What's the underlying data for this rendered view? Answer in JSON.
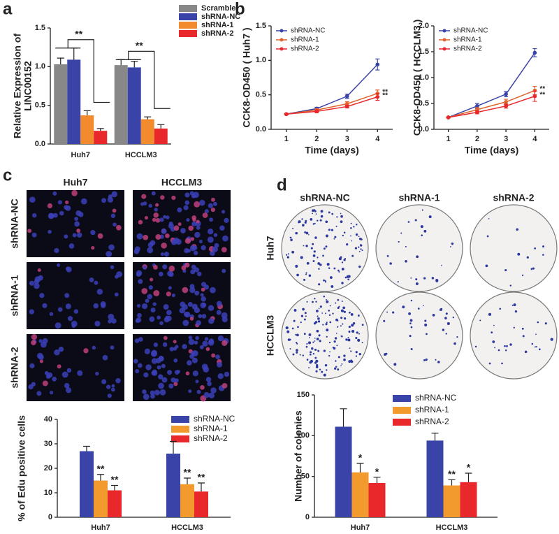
{
  "panel_labels": [
    "a",
    "b",
    "c",
    "d"
  ],
  "image_grids": [
    {
      "columns": [
        "Huh7",
        "HCCLM3"
      ],
      "rows": [
        "shRNA-NC",
        "shRNA-1",
        "shRNA-2"
      ]
    },
    {
      "columns": [
        "shRNA-NC",
        "shRNA-1",
        "shRNA-2"
      ],
      "rows": [
        "Huh7",
        "HCCLM3"
      ]
    }
  ],
  "chart_data": [
    {
      "type": "bar",
      "ylabel": [
        "Relative Expression of",
        "LINC00152"
      ],
      "categories": [
        "Huh7",
        "HCCLM3"
      ],
      "series": [
        {
          "name": "Scramble",
          "color": "#888888",
          "values": [
            1.03,
            1.02
          ],
          "errors": [
            0.08,
            0.07
          ]
        },
        {
          "name": "shRNA-NC",
          "color": "#3a44a8",
          "values": [
            1.09,
            0.99
          ],
          "errors": [
            0.15,
            0.08
          ]
        },
        {
          "name": "shRNA-1",
          "color": "#f28a2e",
          "values": [
            0.37,
            0.32
          ],
          "errors": [
            0.06,
            0.03
          ]
        },
        {
          "name": "shRNA-2",
          "color": "#e8282b",
          "values": [
            0.17,
            0.2
          ],
          "errors": [
            0.03,
            0.05
          ]
        }
      ],
      "ylim": [
        0,
        1.5
      ],
      "yticks": [
        {
          "value": 0,
          "label": "0.0"
        },
        {
          "value": 0.5,
          "label": "0.5"
        },
        {
          "value": 1,
          "label": "1.0"
        },
        {
          "value": 1.5,
          "label": "1.5"
        }
      ],
      "legend": "right",
      "annotations": [
        "**",
        "**"
      ]
    },
    {
      "type": "line",
      "ylabel": "CCK8-OD450 ( Huh7 )",
      "xlabel": "Time (days)",
      "x": [
        1,
        2,
        3,
        4
      ],
      "series": [
        {
          "name": "shRNA-NC",
          "color": "#3a44a8",
          "values": [
            0.22,
            0.3,
            0.48,
            0.94
          ],
          "errors": [
            0.01,
            0.02,
            0.03,
            0.08
          ]
        },
        {
          "name": "shRNA-1",
          "color": "#e0642e",
          "values": [
            0.22,
            0.28,
            0.37,
            0.52
          ],
          "errors": [
            0.01,
            0.02,
            0.03,
            0.05
          ]
        },
        {
          "name": "shRNA-2",
          "color": "#e8282b",
          "values": [
            0.22,
            0.26,
            0.33,
            0.47
          ],
          "errors": [
            0.01,
            0.02,
            0.02,
            0.05
          ]
        }
      ],
      "xlim": [
        0.5,
        4.5
      ],
      "xticks": [
        1,
        2,
        3,
        4
      ],
      "ylim": [
        0,
        1.5
      ],
      "yticks": [
        {
          "value": 0,
          "label": "0.0"
        },
        {
          "value": 0.5,
          "label": "0.5"
        },
        {
          "value": 1,
          "label": "1.0"
        },
        {
          "value": 1.5,
          "label": "1.5"
        }
      ],
      "legend": "upper left",
      "annotations": [
        "**",
        "**"
      ]
    },
    {
      "type": "line",
      "ylabel": "CCK8-OD450 ( HCCLM3 )",
      "xlabel": "Time (days)",
      "x": [
        1,
        2,
        3,
        4
      ],
      "series": [
        {
          "name": "shRNA-NC",
          "color": "#3a44a8",
          "values": [
            0.23,
            0.45,
            0.68,
            1.48
          ],
          "errors": [
            0.01,
            0.05,
            0.05,
            0.08
          ]
        },
        {
          "name": "shRNA-1",
          "color": "#e0642e",
          "values": [
            0.23,
            0.38,
            0.53,
            0.75
          ],
          "errors": [
            0.01,
            0.04,
            0.05,
            0.08
          ]
        },
        {
          "name": "shRNA-2",
          "color": "#e8282b",
          "values": [
            0.23,
            0.33,
            0.45,
            0.64
          ],
          "errors": [
            0.01,
            0.03,
            0.04,
            0.1
          ]
        }
      ],
      "xlim": [
        0.5,
        4.5
      ],
      "xticks": [
        1,
        2,
        3,
        4
      ],
      "ylim": [
        0,
        2
      ],
      "yticks": [
        {
          "value": 0,
          "label": "0.0"
        },
        {
          "value": 0.5,
          "label": "0.5"
        },
        {
          "value": 1,
          "label": "1.0"
        },
        {
          "value": 1.5,
          "label": "1.5"
        },
        {
          "value": 2,
          "label": "2.0"
        }
      ],
      "legend": "upper left",
      "annotations": [
        "**",
        "**"
      ]
    },
    {
      "type": "bar",
      "ylabel": "% of Edu positive cells",
      "categories": [
        "Huh7",
        "HCCLM3"
      ],
      "series": [
        {
          "name": "shRNA-NC",
          "color": "#3a44a8",
          "values": [
            27,
            26
          ],
          "errors": [
            2,
            5
          ]
        },
        {
          "name": "shRNA-1",
          "color": "#f29a2e",
          "values": [
            15,
            13.5
          ],
          "errors": [
            2.5,
            2.5
          ]
        },
        {
          "name": "shRNA-2",
          "color": "#e8282b",
          "values": [
            11,
            10.5
          ],
          "errors": [
            2,
            3.5
          ]
        }
      ],
      "ylim": [
        0,
        40
      ],
      "yticks": [
        0,
        10,
        20,
        30,
        40
      ],
      "legend": "right",
      "annotations": [
        "**",
        "**",
        "**",
        "**"
      ]
    },
    {
      "type": "bar",
      "ylabel": "Number of colonies",
      "categories": [
        "Huh7",
        "HCCLM3"
      ],
      "series": [
        {
          "name": "shRNA-NC",
          "color": "#3a44a8",
          "values": [
            111,
            94
          ],
          "errors": [
            22,
            9
          ]
        },
        {
          "name": "shRNA-1",
          "color": "#f29a2e",
          "values": [
            55,
            39
          ],
          "errors": [
            11,
            7
          ]
        },
        {
          "name": "shRNA-2",
          "color": "#e8282b",
          "values": [
            42,
            43
          ],
          "errors": [
            7,
            11
          ]
        }
      ],
      "ylim": [
        0,
        150
      ],
      "yticks": [
        0,
        50,
        100,
        150
      ],
      "legend": "right",
      "annotations": [
        "*",
        "*",
        "**",
        "*"
      ]
    }
  ]
}
